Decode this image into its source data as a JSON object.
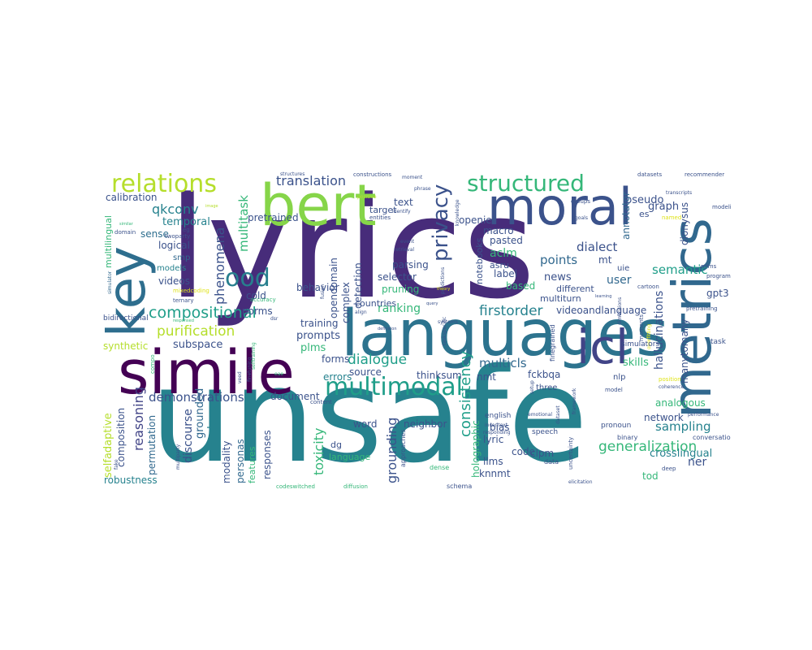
{
  "palette": {
    "indigo": "#472c7a",
    "blue": "#3b528b",
    "steel": "#31688e",
    "teal": "#26828e",
    "green": "#1f9e89",
    "mint": "#35b779",
    "lime": "#6ece58",
    "yellowgreen": "#b5de2b",
    "yellow": "#dfe318"
  },
  "words": {
    "lyrics": "lyrics",
    "unsafe": "unsafe",
    "languages": "languages",
    "simile": "simile",
    "bert": "bert",
    "moral": "moral",
    "metrics": "metrics",
    "key": "key",
    "icl": "icl",
    "multimodal": "multimodal",
    "relations": "relations",
    "structured": "structured",
    "privacy": "privacy",
    "ood": "ood",
    "compositional": "compositional",
    "translation": "translation",
    "purification": "purification",
    "dialogue": "dialogue",
    "firstorder": "firstorder",
    "consistency": "consistency",
    "generalization": "generalization",
    "demonstrations": "demonstrations",
    "qkconv": "qkconv",
    "multitask": "multitask",
    "phenomena": "phenomena",
    "reasoning": "reasoning",
    "sampling": "sampling",
    "points": "points",
    "semantic": "semantic",
    "grounding": "grounding",
    "toxicity": "toxicity",
    "dialect": "dialect",
    "ranking": "ranking",
    "multicls": "multicls",
    "calibration": "calibration",
    "temporal": "temporal",
    "sense": "sense",
    "logical": "logical",
    "smp": "smp",
    "models": "models",
    "videos": "videos",
    "synthetic": "synthetic",
    "multilingual": "multilingual",
    "behavior": "behavior",
    "pretrained": "pretrained",
    "opendomain": "opendomain",
    "detection": "detection",
    "complex": "complex",
    "parsing": "parsing",
    "selector": "selector",
    "pruning": "pruning",
    "text": "text",
    "target": "target",
    "entities": "entities",
    "openie": "openie",
    "macro": "macro",
    "pasted": "pasted",
    "notebooks": "notebooks",
    "aclm": "aclm",
    "asru": "asru",
    "label": "label",
    "news": "news",
    "based": "based",
    "pseudo": "pseudo",
    "graph": "graph",
    "annotator": "annotator",
    "mt": "mt",
    "user": "user",
    "es": "es",
    "dionysus": "dionysus",
    "uie": "uie",
    "different": "different",
    "multiturn": "multiturn",
    "videoandlanguage": "videoandlanguage",
    "hallucinations": "hallucinations",
    "moments": "moments",
    "gpt3": "gpt3",
    "pretraining": "pretraining",
    "programming": "programming",
    "cartoon": "cartoon",
    "manytomany": "manytomany",
    "skills": "skills",
    "simulators": "simulators",
    "nlp": "nlp",
    "task": "task",
    "analogous": "analogous",
    "network": "network",
    "crosslingual": "crosslingual",
    "ner": "ner",
    "tod": "tod",
    "conversation": "conversation",
    "performance": "performance",
    "selfadaptive": "selfadaptive",
    "composition": "composition",
    "permutation": "permutation",
    "robustness": "robustness",
    "discourse": "discourse",
    "grounded": "grounded",
    "long": "long",
    "modality": "modality",
    "personas": "personas",
    "features": "features",
    "responses": "responses",
    "subspace": "subspace",
    "norms": "norms",
    "cold": "cold",
    "prompts": "prompts",
    "plms": "plms",
    "training": "training",
    "forms": "forms",
    "source": "source",
    "errors": "errors",
    "thinksum": "thinksum",
    "nmt": "nmt",
    "document": "document",
    "word": "word",
    "neighbor": "neighbor",
    "dg": "dg",
    "language": "language",
    "bias": "bias",
    "lyric": "lyric",
    "code": "code",
    "llms": "llms",
    "knnmt": "knnmt",
    "clpm": "clpm",
    "holographic": "holographic",
    "fckbqa": "fckbqa",
    "countries": "countries",
    "codeswitched": "codeswitched",
    "diffusion": "diffusion",
    "schema": "schema",
    "dense": "dense",
    "speech": "speech",
    "english": "english",
    "three": "three",
    "data": "data",
    "deep": "deep",
    "binary": "binary",
    "model": "model",
    "pronoun": "pronoun",
    "position": "position",
    "coherence": "coherence",
    "elicitation": "elicitation",
    "emotional": "emotional",
    "dataset": "dataset",
    "setup": "setup",
    "framework": "framework",
    "finegrained": "finegrained",
    "uncertainty": "uncertainty",
    "approaches": "approaches",
    "incontext": "incontext",
    "responding": "responding",
    "systems": "systems",
    "predictions": "predictions",
    "tasksspecific": "taskspecific",
    "fusion": "fusion",
    "event": "event",
    "retrieval": "retrieval",
    "align": "align",
    "definition": "definition",
    "theory": "theory",
    "query": "query",
    "knowledge": "knowledge",
    "structures": "structures",
    "constructions": "constructions",
    "moment": "moment",
    "phrase": "phrase",
    "identify": "identify",
    "positive": "positive",
    "image": "image",
    "similar": "similar",
    "domain": "domain",
    "eg": "eg",
    "twoparty": "twoparty",
    "mixedcoding": "mixedcoding",
    "ternary": "ternary",
    "simulator": "simulator",
    "responsed": "responsed",
    "bidirectional": "bidirectional",
    "compo": "compo",
    "fake": "fake",
    "multiparty": "multiparty",
    "veed": "veed",
    "finetuning": "finetuning",
    "selftraining": "selftraining",
    "eae": "eae",
    "content": "content",
    "accuracy": "accuracy",
    "dsr": "dsr",
    "datasets": "datasets",
    "recommender": "recommender",
    "transcripts": "transcripts",
    "groups": "groups",
    "goals": "goals",
    "named": "named",
    "modeling": "modeling",
    "mlms": "mlms",
    "learning": "learning",
    "dimensions": "dimensions",
    "overfitting": "overfitting"
  }
}
